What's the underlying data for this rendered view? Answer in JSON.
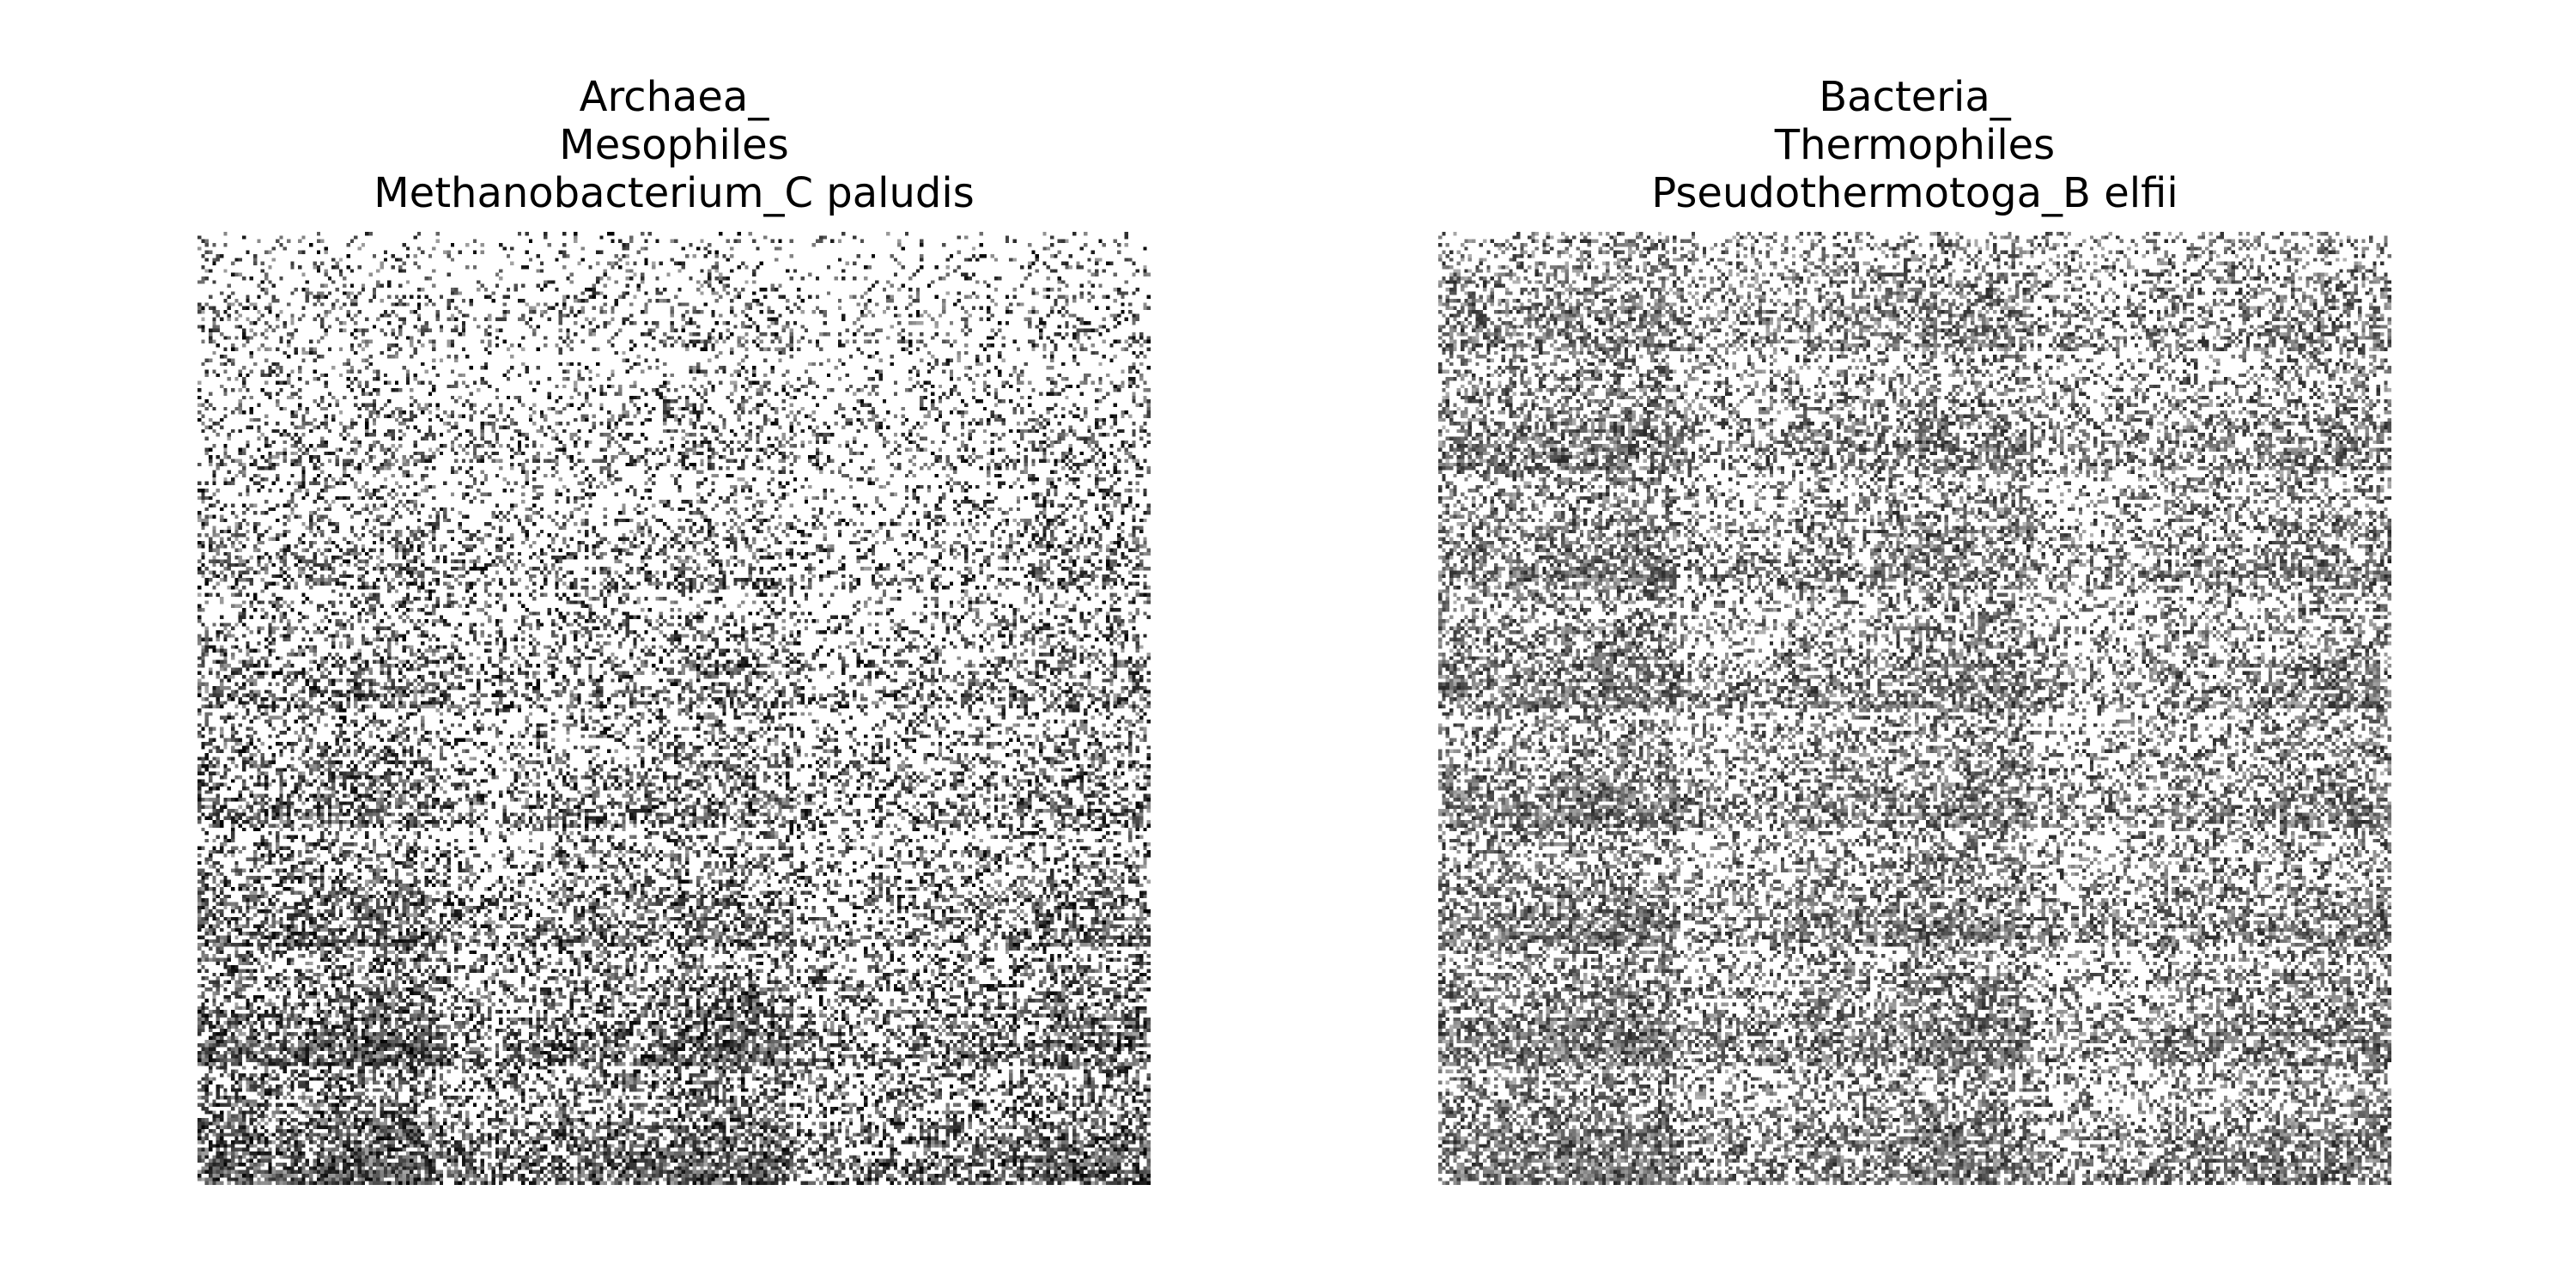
{
  "chart_data": [
    {
      "type": "heatmap",
      "title_lines": [
        "Archaea_",
        "Mesophiles",
        "Methanobacterium_C paludis"
      ],
      "grid": [
        256,
        256
      ],
      "colormap": "gray_r",
      "axes_visible": false,
      "pattern": {
        "density_low_row": 0.15,
        "density_high_row": 0.6,
        "max_intensity": 1.0
      }
    },
    {
      "type": "heatmap",
      "title_lines": [
        "Bacteria_",
        "Thermophiles",
        "Pseudothermotoga_B elfii"
      ],
      "grid": [
        256,
        256
      ],
      "colormap": "gray_r",
      "axes_visible": false,
      "pattern": {
        "density_low_row": 0.42,
        "density_high_row": 0.58,
        "max_intensity": 0.85
      }
    }
  ]
}
